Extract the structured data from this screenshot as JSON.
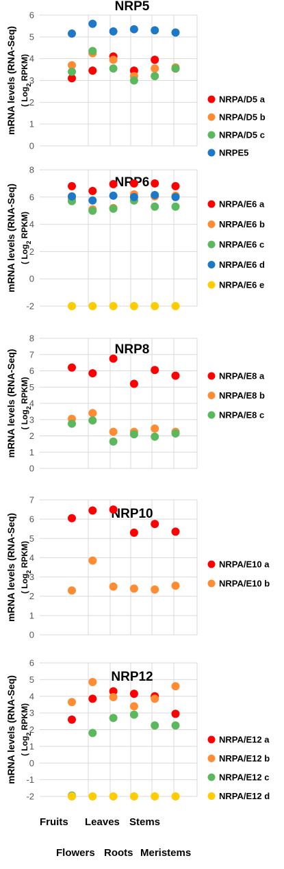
{
  "chart_data": [
    {
      "type": "scatter",
      "title": "NRP5",
      "ylabel": "mRNA levels (RNA-Seq)",
      "ylabel_sub": "( Log2 RPKM)",
      "ylim": [
        0,
        6
      ],
      "yticks": [
        0,
        1,
        2,
        3,
        4,
        5,
        6
      ],
      "grid": true,
      "series": [
        {
          "name": "NRPA/D5 a",
          "color": "#ff0000",
          "values": [
            3.1,
            3.45,
            4.1,
            3.45,
            3.95,
            3.55
          ]
        },
        {
          "name": "NRPA/D5 b",
          "color": "#ff8c33",
          "values": [
            3.7,
            4.25,
            3.95,
            3.2,
            3.55,
            3.6
          ]
        },
        {
          "name": "NRPA/D5 c",
          "color": "#5cb85c",
          "values": [
            3.4,
            4.35,
            3.55,
            3.0,
            3.2,
            3.55
          ]
        },
        {
          "name": "NRPE5",
          "color": "#1e78c8",
          "values": [
            5.15,
            5.6,
            5.25,
            5.35,
            5.3,
            5.2
          ]
        }
      ]
    },
    {
      "type": "scatter",
      "title": "NRP6",
      "ylabel": "mRNA levels (RNA-Seq)",
      "ylabel_sub": "( Log2 RPKM)",
      "ylim": [
        -2,
        8
      ],
      "yticks": [
        -2,
        0,
        2,
        4,
        6,
        8
      ],
      "grid": true,
      "series": [
        {
          "name": "NRPA/E6 a",
          "color": "#ff0000",
          "values": [
            6.8,
            6.45,
            6.95,
            7.0,
            7.0,
            6.8
          ]
        },
        {
          "name": "NRPA/E6 b",
          "color": "#ff8c33",
          "values": [
            5.9,
            5.1,
            5.2,
            6.2,
            6.05,
            6.1
          ]
        },
        {
          "name": "NRPA/E6 c",
          "color": "#5cb85c",
          "values": [
            5.7,
            5.0,
            5.15,
            5.75,
            5.3,
            5.3
          ]
        },
        {
          "name": "NRPA/E6 d",
          "color": "#1e78c8",
          "values": [
            6.05,
            5.75,
            6.1,
            6.0,
            6.15,
            6.0
          ]
        },
        {
          "name": "NRPA/E6 e",
          "color": "#ffcc00",
          "values": [
            -2,
            -2,
            -2,
            -2,
            -2,
            -2
          ]
        }
      ]
    },
    {
      "type": "scatter",
      "title": "NRP8",
      "ylabel": "mRNA levels (RNA-Seq)",
      "ylabel_sub": "( Log2 RPKM)",
      "ylim": [
        0,
        8
      ],
      "yticks": [
        0,
        1,
        2,
        3,
        4,
        5,
        6,
        7,
        8
      ],
      "grid": true,
      "series": [
        {
          "name": "NRPA/E8 a",
          "color": "#ff0000",
          "values": [
            6.2,
            5.85,
            6.75,
            5.2,
            6.05,
            5.7
          ]
        },
        {
          "name": "NRPA/E8 b",
          "color": "#ff8c33",
          "values": [
            3.05,
            3.4,
            2.25,
            2.25,
            2.45,
            2.25
          ]
        },
        {
          "name": "NRPA/E8 c",
          "color": "#5cb85c",
          "values": [
            2.75,
            2.95,
            1.65,
            2.1,
            1.95,
            2.15
          ]
        }
      ]
    },
    {
      "type": "scatter",
      "title": "NRP10",
      "ylabel": "mRNA levels (RNA-Seq)",
      "ylabel_sub": "( Log2 RPKM)",
      "ylim": [
        0,
        7
      ],
      "yticks": [
        0,
        1,
        2,
        3,
        4,
        5,
        6,
        7
      ],
      "grid": true,
      "series": [
        {
          "name": "NRPA/E10 a",
          "color": "#ff0000",
          "values": [
            6.05,
            6.45,
            6.5,
            5.3,
            5.75,
            5.35
          ]
        },
        {
          "name": "NRPA/E10 b",
          "color": "#ff8c33",
          "values": [
            2.3,
            3.85,
            2.5,
            2.4,
            2.35,
            2.55
          ]
        }
      ]
    },
    {
      "type": "scatter",
      "title": "NRP12",
      "ylabel": "mRNA levels (RNA-Seq)",
      "ylabel_sub": "( Log2 RPKM)",
      "ylim": [
        -2,
        6
      ],
      "yticks": [
        -2,
        -1,
        0,
        1,
        2,
        3,
        4,
        5,
        6
      ],
      "grid": true,
      "series": [
        {
          "name": "NRPA/E12 a",
          "color": "#ff0000",
          "values": [
            2.6,
            3.85,
            4.3,
            4.15,
            4.0,
            2.95
          ]
        },
        {
          "name": "NRPA/E12 b",
          "color": "#ff8c33",
          "values": [
            3.65,
            4.85,
            3.95,
            3.4,
            3.85,
            4.6
          ]
        },
        {
          "name": "NRPA/E12 c",
          "color": "#5cb85c",
          "values": [
            -1.95,
            1.8,
            2.7,
            2.9,
            2.25,
            2.25
          ]
        },
        {
          "name": "NRPA/E12 d",
          "color": "#ffcc00",
          "values": [
            -2,
            -2,
            -2,
            -2,
            -2,
            -2
          ]
        }
      ]
    }
  ],
  "categories": [
    "Fruits",
    "Flowers",
    "Leaves",
    "Roots",
    "Stems",
    "Meristems"
  ]
}
